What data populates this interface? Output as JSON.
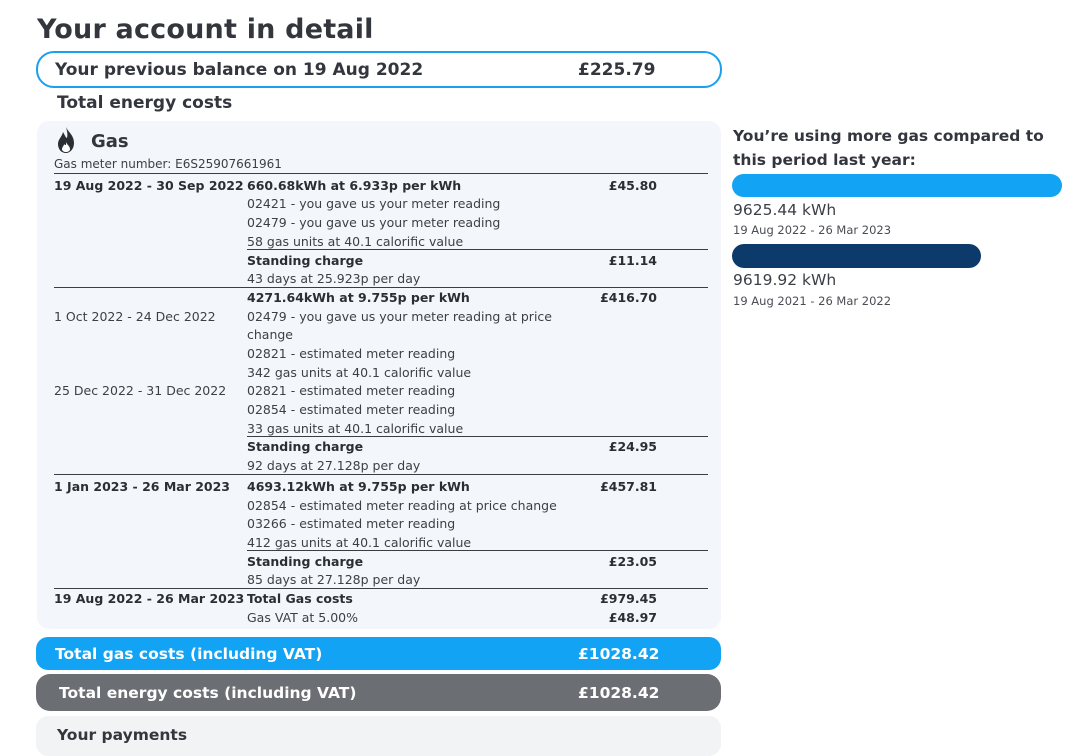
{
  "page": {
    "title": "Your account in detail",
    "previous_balance_label": "Your previous balance on 19 Aug 2022",
    "previous_balance_amount": "£225.79",
    "section_title": "Total energy costs"
  },
  "gas": {
    "icon": "flame-icon",
    "title": "Gas",
    "meter_number": "Gas meter number: E6S25907661961",
    "period1": {
      "dates": "19 Aug 2022 - 30 Sep 2022",
      "usage": "660.68kWh at 6.933p per kWh",
      "amount": "£45.80",
      "notes": [
        "02421 - you gave us your meter reading",
        "02479 - you gave us your meter reading",
        "58 gas units at 40.1 calorific value"
      ],
      "standing_label": "Standing charge",
      "standing_amount": "£11.14",
      "standing_detail": "43 days at 25.923p per day"
    },
    "period2": {
      "usage": "4271.64kWh at 9.755p per kWh",
      "amount": "£416.70",
      "dates_a": "1 Oct 2022 - 24 Dec 2022",
      "dates_b": "25 Dec 2022 - 31 Dec 2022",
      "note1": "02479 - you gave us your meter reading at price",
      "note1b": "change",
      "note2": "02821 - estimated meter reading",
      "note3": "342 gas units at 40.1 calorific value",
      "note4": "02821 - estimated meter reading",
      "note5": "02854 - estimated meter reading",
      "note6": "33 gas units at 40.1 calorific value",
      "standing_label": "Standing charge",
      "standing_amount": "£24.95",
      "standing_detail": "92 days at 27.128p per day"
    },
    "period3": {
      "dates": "1 Jan 2023 - 26 Mar 2023",
      "usage": "4693.12kWh at 9.755p per kWh",
      "amount": "£457.81",
      "notes": [
        "02854 - estimated meter reading at price change",
        "03266 - estimated meter reading",
        "412 gas units at 40.1 calorific value"
      ],
      "standing_label": "Standing charge",
      "standing_amount": "£23.05",
      "standing_detail": "85 days at 27.128p per day"
    },
    "totals": {
      "dates": "19 Aug 2022 - 26 Mar 2023",
      "label": "Total Gas costs",
      "amount": "£979.45",
      "vat_label": "Gas VAT at 5.00%",
      "vat_amount": "£48.97"
    }
  },
  "summary": {
    "gas_total_label": "Total gas costs (including VAT)",
    "gas_total_amount": "£1028.42",
    "energy_total_label": "Total energy costs (including VAT)",
    "energy_total_amount": "£1028.42",
    "payments_label": "Your payments"
  },
  "comparison": {
    "heading": "You’re using more gas compared to this period last year:",
    "current": {
      "value": "9625.44 kWh",
      "period": "19 Aug 2022 - 26 Mar 2023",
      "kwh": 9625.44
    },
    "previous": {
      "value": "9619.92 kWh",
      "period": "19 Aug 2021 - 26 Mar 2022",
      "kwh": 9619.92
    },
    "colors": {
      "current": "#12a3f5",
      "previous": "#0b3a6b"
    }
  }
}
